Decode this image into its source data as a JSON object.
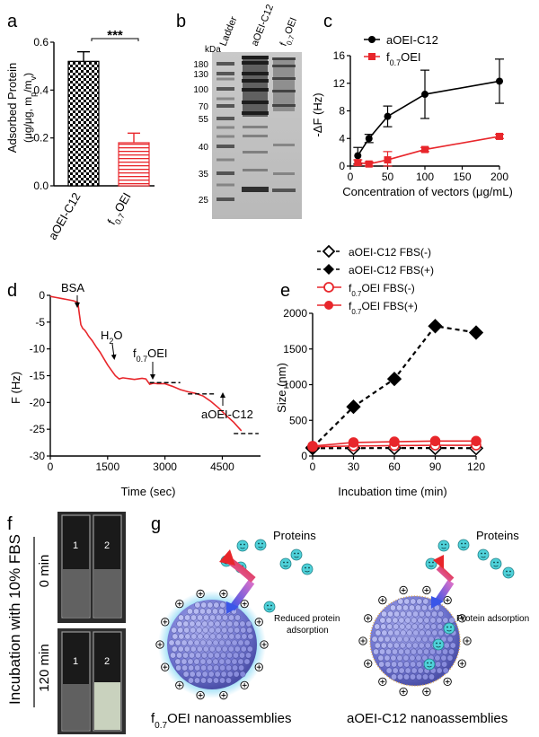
{
  "colors": {
    "black": "#000000",
    "red": "#e8262b",
    "blue_particle": "#7a7fd6",
    "cyan_protein": "#4fd1d9",
    "glow": "#58c8f0"
  },
  "panels": {
    "a": {
      "letter": "a"
    },
    "b": {
      "letter": "b"
    },
    "c": {
      "letter": "c"
    },
    "d": {
      "letter": "d"
    },
    "e": {
      "letter": "e"
    },
    "f": {
      "letter": "f"
    },
    "g": {
      "letter": "g"
    }
  },
  "chart_data": [
    {
      "panel": "a",
      "type": "bar",
      "categories": [
        "aOEI-C12",
        "f0.7OEI"
      ],
      "values": [
        0.52,
        0.18
      ],
      "errors": [
        0.04,
        0.04
      ],
      "ylabel_line1": "Adsorbed Protein",
      "ylabel_line2": "(μg/μg, mp/mv)",
      "ylim": [
        0,
        0.6
      ],
      "yticks": [
        "0.0",
        "0.2",
        "0.4",
        "0.6"
      ],
      "significance": "***",
      "fill": [
        "checkered-black",
        "striped-red"
      ]
    },
    {
      "panel": "b",
      "type": "gel",
      "lanes": [
        "Ladder",
        "aOEI-C12",
        "f0.7OEI"
      ],
      "unit": "kDa",
      "markers": [
        "180",
        "130",
        "100",
        "70",
        "55",
        "40",
        "35",
        "25"
      ]
    },
    {
      "panel": "c",
      "type": "line",
      "xlabel": "Concentration of vectors (μg/mL)",
      "ylabel": "-ΔF (Hz)",
      "xlim": [
        0,
        200
      ],
      "ylim": [
        0,
        16
      ],
      "xticks": [
        "0",
        "50",
        "100",
        "150",
        "200"
      ],
      "yticks": [
        "0",
        "4",
        "8",
        "12",
        "16"
      ],
      "series": [
        {
          "name": "aOEI-C12",
          "marker": "circle",
          "color": "#000000",
          "x": [
            10,
            25,
            50,
            100,
            200
          ],
          "y": [
            1.5,
            4.0,
            7.2,
            10.4,
            12.3
          ],
          "err": [
            1.2,
            0.6,
            1.5,
            3.5,
            3.2
          ]
        },
        {
          "name": "f0.7OEI",
          "marker": "square",
          "color": "#e8262b",
          "x": [
            10,
            25,
            50,
            100,
            200
          ],
          "y": [
            0.5,
            0.3,
            0.9,
            2.4,
            4.3
          ],
          "err": [
            0.4,
            0.3,
            1.2,
            0.3,
            0.3
          ]
        }
      ],
      "legend": "top-left"
    },
    {
      "panel": "d",
      "type": "line",
      "xlabel": "Time (sec)",
      "ylabel": "F (Hz)",
      "xlim": [
        0,
        5500
      ],
      "ylim": [
        -30,
        0
      ],
      "xticks": [
        "0",
        "1500",
        "3000",
        "4500"
      ],
      "yticks": [
        "0",
        "-5",
        "-10",
        "-15",
        "-20",
        "-25",
        "-30"
      ],
      "series": [
        {
          "name": "",
          "color": "#e8262b",
          "x": [
            0,
            150,
            300,
            450,
            600,
            720,
            760,
            800,
            850,
            900,
            950,
            1000,
            1100,
            1200,
            1300,
            1400,
            1500,
            1600,
            1700,
            1800,
            1900,
            2000,
            2100,
            2200,
            2300,
            2400,
            2500,
            2600,
            2700,
            2800,
            3000,
            3200,
            3400,
            3600,
            3800,
            4000,
            4200,
            4400,
            4600,
            4800,
            5000
          ],
          "y": [
            -0.2,
            -0.4,
            -0.6,
            -0.8,
            -1.0,
            -1.3,
            -3.5,
            -5.5,
            -6.2,
            -6.5,
            -7.0,
            -7.6,
            -8.5,
            -9.6,
            -10.6,
            -11.8,
            -13.0,
            -14.0,
            -15.0,
            -15.6,
            -15.4,
            -15.5,
            -15.6,
            -15.7,
            -15.6,
            -15.5,
            -15.6,
            -16.6,
            -16.4,
            -16.5,
            -16.5,
            -17.0,
            -17.6,
            -18.0,
            -18.3,
            -18.8,
            -19.8,
            -21.0,
            -22.4,
            -23.7,
            -25.3
          ]
        }
      ],
      "annotations": [
        "BSA",
        "H2O",
        "f0.7OEI",
        "aOEI-C12"
      ]
    },
    {
      "panel": "e",
      "type": "line",
      "xlabel": "Incubation time (min)",
      "ylabel": "Size (nm)",
      "xlim": [
        0,
        120
      ],
      "ylim": [
        0,
        2000
      ],
      "xticks": [
        "0",
        "30",
        "60",
        "90",
        "120"
      ],
      "yticks": [
        "0",
        "500",
        "1000",
        "1500",
        "2000"
      ],
      "series": [
        {
          "name": "aOEI-C12 FBS(-)",
          "marker": "diamond-open",
          "color": "#000000",
          "x": [
            0,
            30,
            60,
            90,
            120
          ],
          "y": [
            110,
            110,
            112,
            112,
            110
          ]
        },
        {
          "name": "aOEI-C12 FBS(+)",
          "marker": "diamond",
          "color": "#000000",
          "x": [
            0,
            30,
            60,
            90,
            120
          ],
          "y": [
            120,
            690,
            1080,
            1820,
            1730
          ]
        },
        {
          "name": "f0.7OEI FBS(-)",
          "marker": "circle-open",
          "color": "#e8262b",
          "x": [
            0,
            30,
            60,
            90,
            120
          ],
          "y": [
            130,
            140,
            145,
            150,
            150
          ]
        },
        {
          "name": "f0.7OEI FBS(+)",
          "marker": "circle",
          "color": "#e8262b",
          "x": [
            0,
            30,
            60,
            90,
            120
          ],
          "y": [
            140,
            190,
            200,
            210,
            210
          ]
        }
      ],
      "legend": "top"
    }
  ],
  "panel_f": {
    "side_label": "Incubation with 10% FBS",
    "time_top": "0 min",
    "time_bottom": "120 min",
    "cuvette_1": "1",
    "cuvette_2": "2"
  },
  "panel_g": {
    "proteins_label": "Proteins",
    "left_caption_sub": "0.7",
    "left_caption_pre": "f",
    "left_caption_post": "OEI nanoassemblies",
    "left_note": "Reduced protein adsorption",
    "right_caption": "aOEI-C12 nanoassemblies",
    "right_note": "Protein adsorption"
  }
}
